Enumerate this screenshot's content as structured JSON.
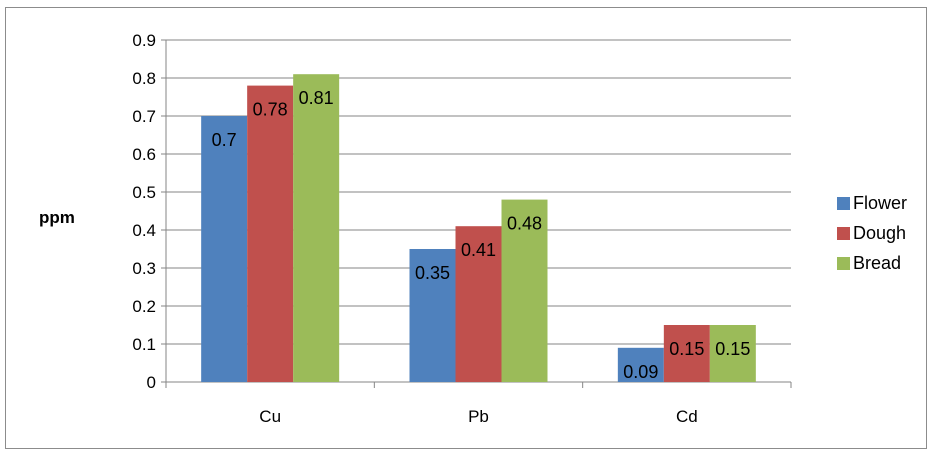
{
  "chart_data": {
    "type": "bar",
    "categories": [
      "Cu",
      "Pb",
      "Cd"
    ],
    "series": [
      {
        "name": "Flower",
        "color": "#4f81bd",
        "values": [
          0.7,
          0.35,
          0.09
        ]
      },
      {
        "name": "Dough",
        "color": "#c0504d",
        "values": [
          0.78,
          0.41,
          0.15
        ]
      },
      {
        "name": "Bread",
        "color": "#9bbb59",
        "values": [
          0.81,
          0.48,
          0.15
        ]
      }
    ],
    "ylabel": "ppm",
    "ylim": [
      0,
      0.9
    ],
    "yticks": [
      "0",
      "0.1",
      "0.2",
      "0.3",
      "0.4",
      "0.5",
      "0.6",
      "0.7",
      "0.8",
      "0.9"
    ],
    "data_labels": [
      [
        "0.7",
        "0.35",
        "0.09"
      ],
      [
        "0.78",
        "0.41",
        "0.15"
      ],
      [
        "0.81",
        "0.48",
        "0.15"
      ]
    ],
    "grid": true,
    "legend_position": "right"
  }
}
